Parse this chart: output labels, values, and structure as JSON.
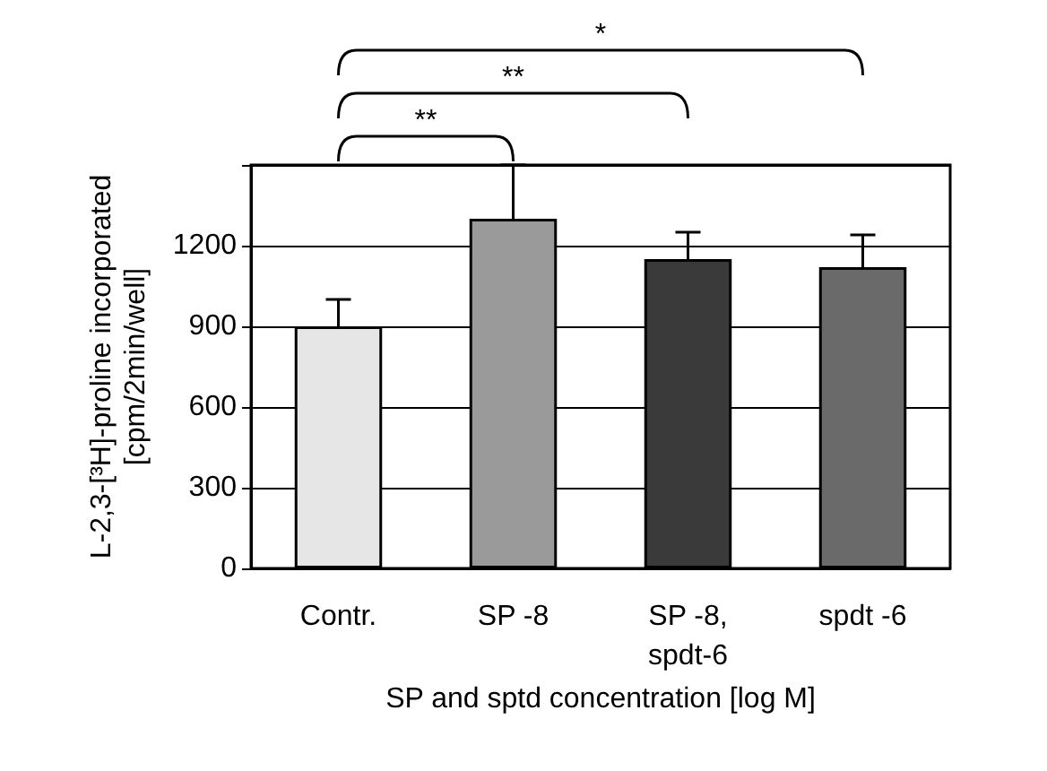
{
  "chart_data": {
    "type": "bar",
    "ylabel": "L-2,3-[³H]-proline incorporated\n[cpm/2min/well]",
    "xlabel": "SP and sptd concentration [log M]",
    "categories": [
      "Contr.",
      "SP -8",
      "SP -8,\nspdt-6",
      "spdt -6"
    ],
    "values": [
      900,
      1300,
      1150,
      1120
    ],
    "errors": [
      100,
      200,
      100,
      120
    ],
    "colors": [
      "#e6e6e6",
      "#9a9a9a",
      "#3a3a3a",
      "#6a6a6a"
    ],
    "ylim": [
      0,
      1500
    ],
    "yticks": [
      0,
      300,
      600,
      900,
      1200,
      {
        "value": 1500,
        "label": null
      }
    ],
    "grid": "y",
    "annotations": [
      "**",
      "**",
      "*"
    ]
  }
}
